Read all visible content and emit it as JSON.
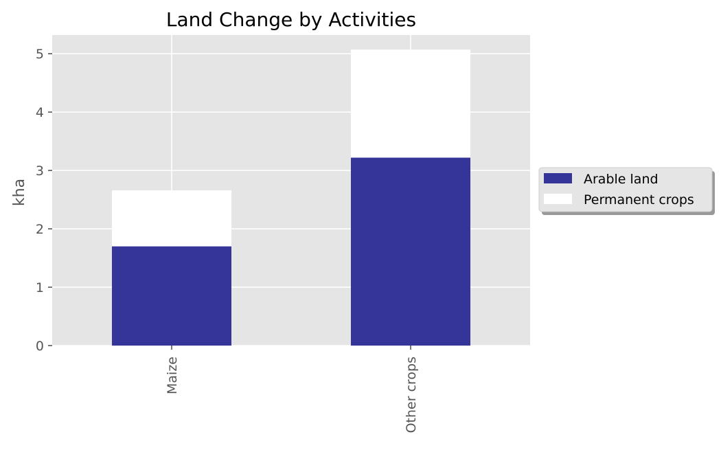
{
  "chart_data": {
    "type": "bar",
    "stacked": true,
    "title": "Land Change by Activities",
    "xlabel": "",
    "ylabel": "kha",
    "categories": [
      "Maize",
      "Other crops"
    ],
    "series": [
      {
        "name": "Arable land",
        "values": [
          1.7,
          3.22
        ],
        "color": "#343499"
      },
      {
        "name": "Permanent crops",
        "values": [
          0.96,
          1.85
        ],
        "color": "#ffffff"
      }
    ],
    "ylim": [
      0,
      5.32
    ],
    "yticks": [
      "0",
      "1",
      "2",
      "3",
      "4",
      "5"
    ],
    "grid": true,
    "legend_position": "right",
    "plot_background": "#e5e5e5"
  }
}
